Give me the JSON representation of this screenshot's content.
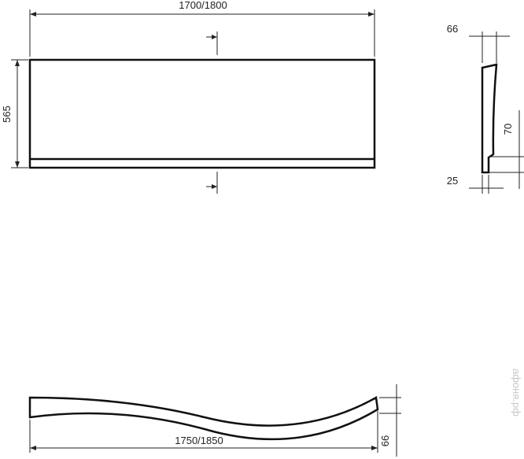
{
  "front_view": {
    "width_label": "1700/1800",
    "height_label": "565"
  },
  "side_view": {
    "top_label": "66",
    "step_label": "70",
    "bottom_label": "25"
  },
  "top_view": {
    "length_label": "1750/1850",
    "depth_label": "66"
  },
  "watermark": "афоня.рф"
}
